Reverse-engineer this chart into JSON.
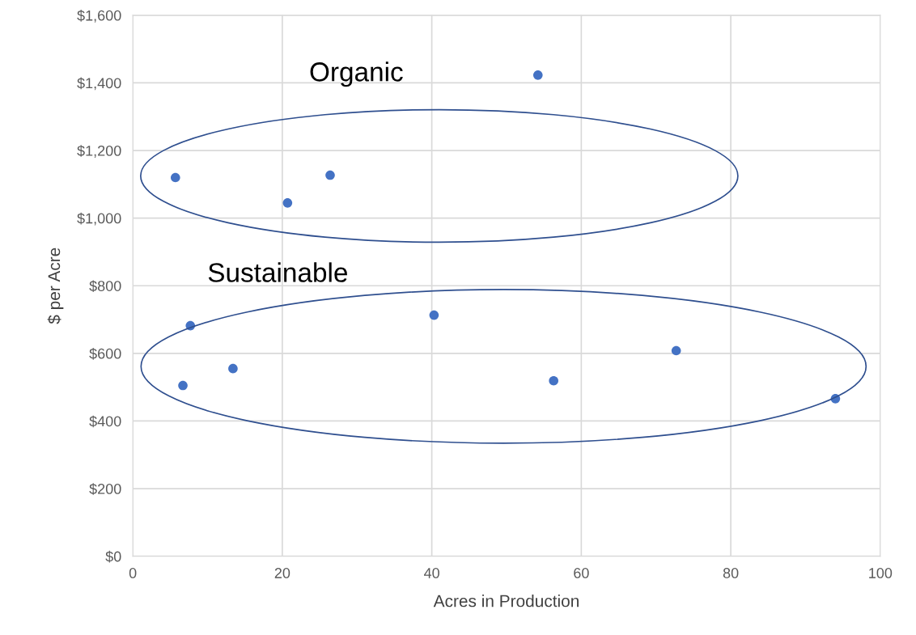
{
  "chart_data": {
    "type": "scatter",
    "xlabel": "Acres in Production",
    "ylabel": "$ per Acre",
    "x": [
      5.7,
      26.4,
      20.7,
      54.2,
      7.7,
      6.7,
      13.4,
      40.3,
      56.3,
      72.7,
      94.0
    ],
    "series": [
      {
        "color": "#4472c4",
        "values": [
          1120,
          1127,
          1045,
          1423,
          682,
          505,
          555,
          713,
          519,
          608,
          466
        ]
      }
    ],
    "xlim": [
      0,
      100
    ],
    "xticks": [
      0,
      20,
      40,
      60,
      80,
      100
    ],
    "ylim": [
      0,
      1600
    ],
    "yticks": [
      {
        "value": 0,
        "label": "$0"
      },
      {
        "value": 200,
        "label": "$200"
      },
      {
        "value": 400,
        "label": "$400"
      },
      {
        "value": 600,
        "label": "$600"
      },
      {
        "value": 800,
        "label": "$800"
      },
      {
        "value": 1000,
        "label": "$1,000"
      },
      {
        "value": 1200,
        "label": "$1,200"
      },
      {
        "value": 1400,
        "label": "$1,400"
      },
      {
        "value": 1600,
        "label": "$1,600"
      }
    ],
    "grid": true,
    "marker": "circle",
    "annotations": [
      "Organic",
      "Sustainable"
    ]
  }
}
